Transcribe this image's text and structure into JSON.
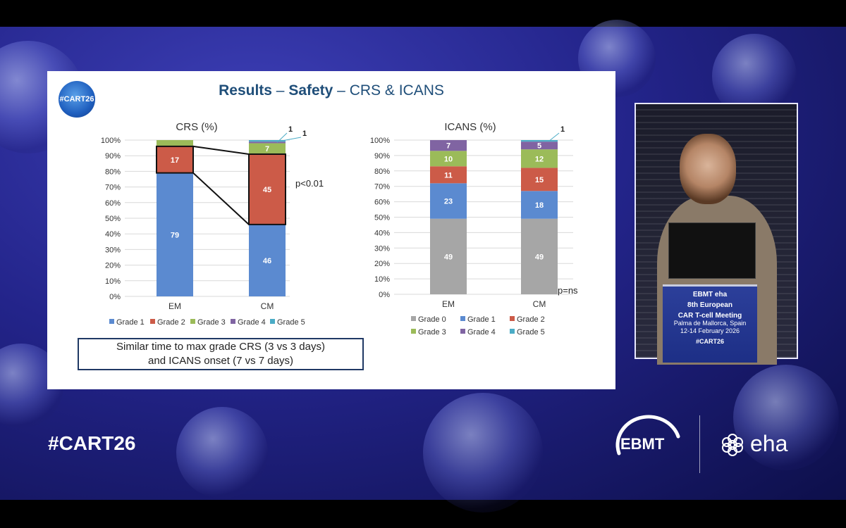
{
  "slide": {
    "logo_text": "#CART26",
    "title_bold_1": "Results",
    "title_sep_1": " – ",
    "title_bold_2": "Safety",
    "title_sep_2": " – ",
    "title_rest": "CRS & ICANS",
    "note_line_1": "Similar time to max grade CRS (3 vs 3 days)",
    "note_line_2": "and ICANS onset (7 vs 7 days)"
  },
  "colors": {
    "grade0": "#a6a6a6",
    "grade1": "#5b8ad0",
    "grade2": "#cc5b48",
    "grade3": "#9bbb59",
    "grade4": "#8064a2",
    "grade5": "#4bacc6"
  },
  "chart_data": [
    {
      "type": "bar",
      "stacked": true,
      "title": "CRS (%)",
      "categories": [
        "EM",
        "CM"
      ],
      "ylim": [
        0,
        100
      ],
      "yticks": [
        "0%",
        "10%",
        "20%",
        "30%",
        "40%",
        "50%",
        "60%",
        "70%",
        "80%",
        "90%",
        "100%"
      ],
      "series": [
        {
          "name": "Grade 1",
          "values": [
            79,
            46
          ]
        },
        {
          "name": "Grade 2",
          "values": [
            17,
            45
          ]
        },
        {
          "name": "Grade 3",
          "values": [
            4,
            7
          ]
        },
        {
          "name": "Grade 4",
          "values": [
            0,
            1
          ]
        },
        {
          "name": "Grade 5",
          "values": [
            0,
            1
          ]
        }
      ],
      "legend": [
        "Grade 1",
        "Grade 2",
        "Grade 3",
        "Grade 4",
        "Grade 5"
      ],
      "annotation": "p<0.01",
      "callouts": [
        "1",
        "1"
      ]
    },
    {
      "type": "bar",
      "stacked": true,
      "title": "ICANS (%)",
      "categories": [
        "EM",
        "CM"
      ],
      "ylim": [
        0,
        100
      ],
      "yticks": [
        "0%",
        "10%",
        "20%",
        "30%",
        "40%",
        "50%",
        "60%",
        "70%",
        "80%",
        "90%",
        "100%"
      ],
      "series": [
        {
          "name": "Grade 0",
          "values": [
            49,
            49
          ]
        },
        {
          "name": "Grade 1",
          "values": [
            23,
            18
          ]
        },
        {
          "name": "Grade 2",
          "values": [
            11,
            15
          ]
        },
        {
          "name": "Grade 3",
          "values": [
            10,
            12
          ]
        },
        {
          "name": "Grade 4",
          "values": [
            7,
            5
          ]
        },
        {
          "name": "Grade 5",
          "values": [
            0,
            1
          ]
        }
      ],
      "legend": [
        "Grade 0",
        "Grade 1",
        "Grade 2",
        "Grade 3",
        "Grade 4",
        "Grade 5"
      ],
      "annotation": "p=ns",
      "callouts": [
        "1"
      ]
    }
  ],
  "video": {
    "podium_brand": "EBMT  eha",
    "podium_conf_1": "8th European",
    "podium_conf_2": "CAR T-cell Meeting",
    "podium_place": "Palma de Mallorca, Spain",
    "podium_dates": "12-14 February 2026",
    "podium_tag": "#CART26"
  },
  "footer": {
    "hashtag": "#CART26",
    "ebmt": "EBMT",
    "eha": "eha"
  }
}
